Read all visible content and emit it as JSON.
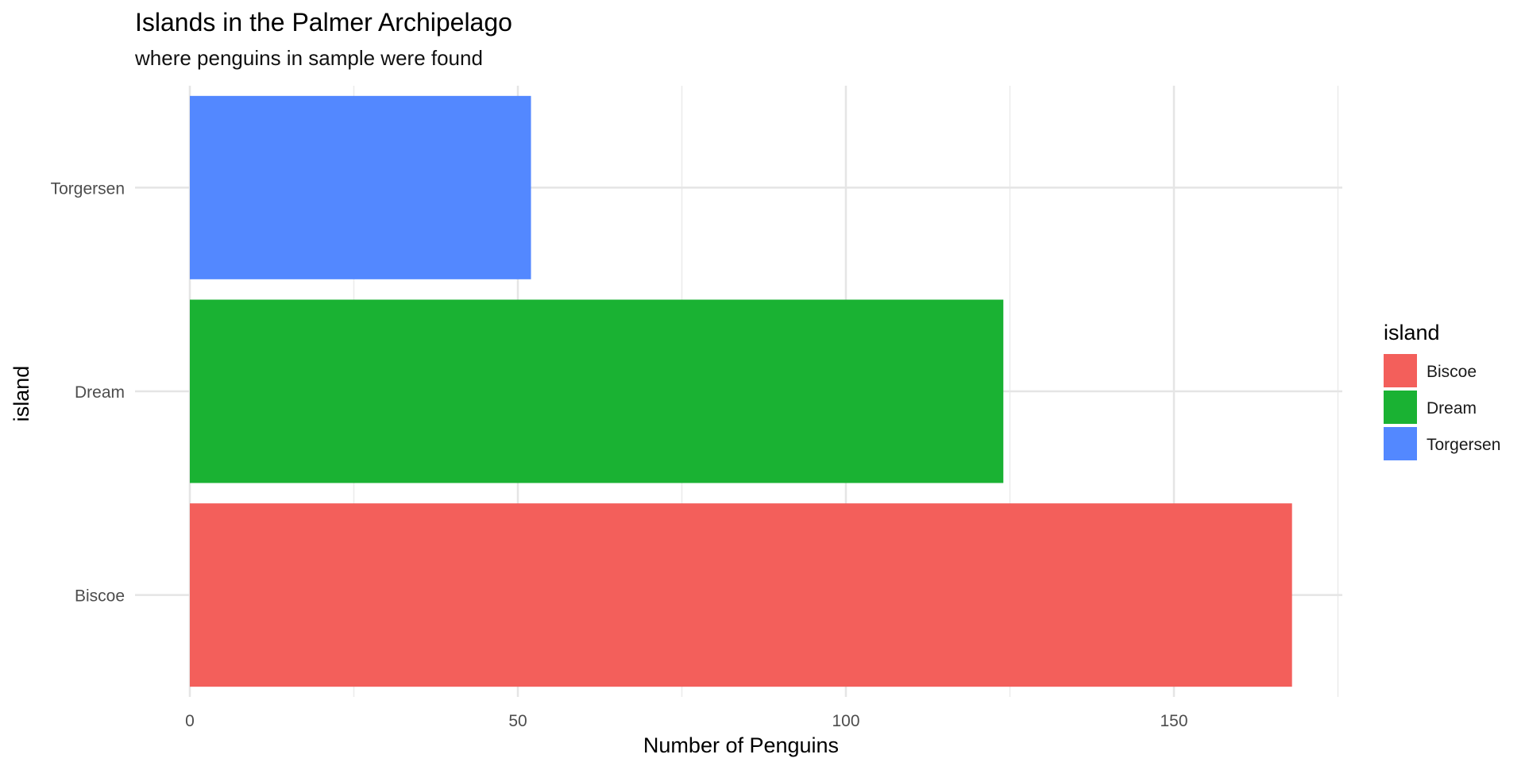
{
  "chart_data": {
    "type": "bar",
    "orientation": "horizontal",
    "title": "Islands in the Palmer Archipelago",
    "subtitle": "where penguins in sample were found",
    "xlabel": "Number of Penguins",
    "ylabel": "island",
    "categories": [
      "Biscoe",
      "Dream",
      "Torgersen"
    ],
    "values": [
      168,
      124,
      52
    ],
    "colors": [
      "#F35F5B",
      "#1AB233",
      "#5388FF"
    ],
    "xlim": [
      0,
      176
    ],
    "xticks": [
      0,
      50,
      100,
      150
    ],
    "xtick_labels": [
      "0",
      "50",
      "100",
      "150"
    ],
    "grid": true,
    "legend": {
      "title": "island",
      "position": "right",
      "entries": [
        "Biscoe",
        "Dream",
        "Torgersen"
      ]
    }
  }
}
